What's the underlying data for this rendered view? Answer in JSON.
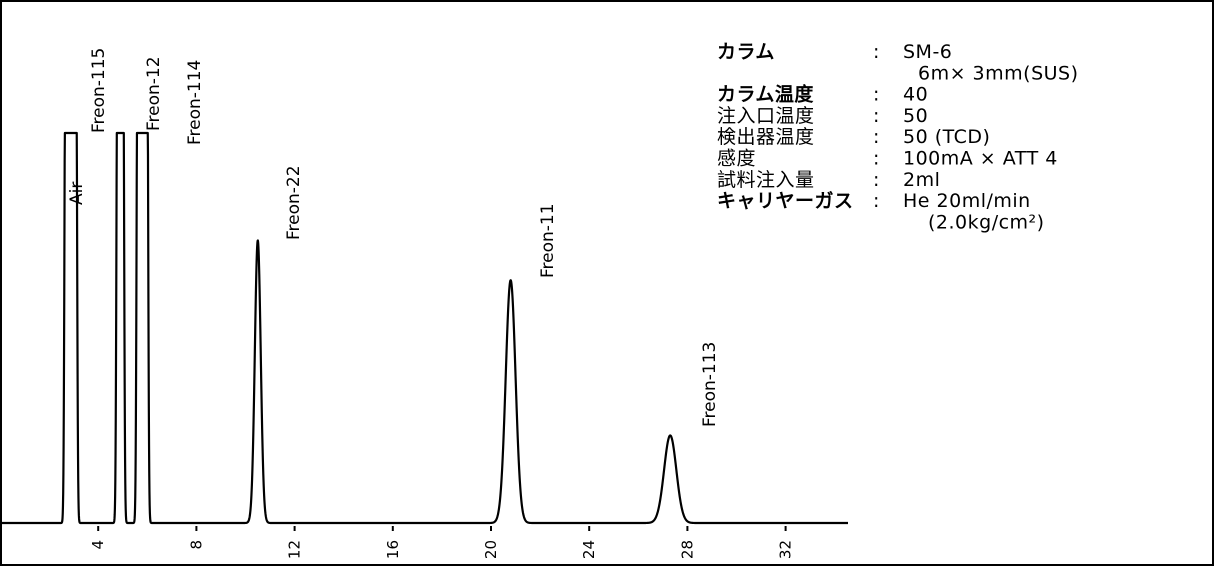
{
  "chart_data": {
    "type": "line",
    "title": "",
    "xlabel": "",
    "ylabel": "",
    "xlim": [
      0,
      33
    ],
    "ylim": [
      0,
      100
    ],
    "x_ticks": [
      4,
      8,
      12,
      16,
      20,
      24,
      28,
      32
    ],
    "x_tick_labels": [
      "4",
      "8",
      "12",
      "16",
      "20",
      "24",
      "28",
      "32"
    ],
    "grid": false,
    "baseline": 2,
    "peaks": [
      {
        "label": "Air",
        "rt": 2.75,
        "height": 100,
        "width": 0.05,
        "clipped": true
      },
      {
        "label": "Freon-115",
        "rt": 3.0,
        "height": 100,
        "width": 0.06,
        "clipped": true
      },
      {
        "label": "Freon-12",
        "rt": 4.9,
        "height": 100,
        "width": 0.07,
        "clipped": true
      },
      {
        "label": "Freon-114",
        "rt": 5.8,
        "height": 100,
        "width": 0.12,
        "clipped": true
      },
      {
        "label": "Freon-22",
        "rt": 10.5,
        "height": 73,
        "width": 0.12,
        "clipped": false
      },
      {
        "label": "Freon-11",
        "rt": 20.8,
        "height": 63,
        "width": 0.2,
        "clipped": false
      },
      {
        "label": "Freon-113",
        "rt": 27.3,
        "height": 24,
        "width": 0.25,
        "clipped": false
      }
    ]
  },
  "conditions": [
    {
      "key": "カラム",
      "sep": ":",
      "value": "SM-6",
      "bold": true
    },
    {
      "key": "",
      "sep": "",
      "value": "6m× 3mm(SUS)",
      "bold": false
    },
    {
      "key": "カラム温度",
      "sep": ":",
      "value": "40",
      "bold": true
    },
    {
      "key": "注入口温度",
      "sep": ":",
      "value": "50",
      "bold": false
    },
    {
      "key": "検出器温度",
      "sep": ":",
      "value": "50 (TCD)",
      "bold": false
    },
    {
      "key": "感度",
      "sep": ":",
      "value": "100mA × ATT 4",
      "bold": false
    },
    {
      "key": "試料注入量",
      "sep": ":",
      "value": "2ml",
      "bold": false
    },
    {
      "key": "キャリヤーガス",
      "sep": ":",
      "value": "He 20ml/min",
      "bold": true
    },
    {
      "key": "",
      "sep": "",
      "value": "(2.0kg/cm²)",
      "bold": false
    }
  ]
}
